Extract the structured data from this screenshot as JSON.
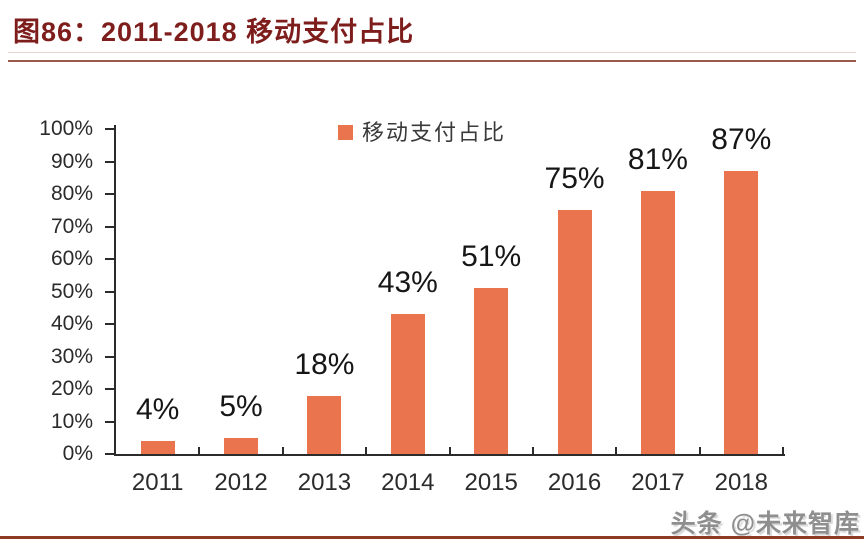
{
  "figure": {
    "title": "图86：2011-2018 移动支付占比",
    "watermark": "头条 @未来智库"
  },
  "colors": {
    "title": "#7E1E1C",
    "bar": "#EA744E",
    "axis": "#2B2B2B",
    "title_rule": "#9A5B4B",
    "bottom_bar": "#8E3B26",
    "watermark": "#8F8F8F"
  },
  "chart_data": {
    "type": "bar",
    "title": "图86：2011-2018 移动支付占比",
    "legend": [
      {
        "label": "移动支付占比",
        "color": "#EA744E"
      }
    ],
    "legend_position": "top-center",
    "categories": [
      "2011",
      "2012",
      "2013",
      "2014",
      "2015",
      "2016",
      "2017",
      "2018"
    ],
    "series": [
      {
        "name": "移动支付占比",
        "values": [
          4,
          5,
          18,
          43,
          51,
          75,
          81,
          87
        ]
      }
    ],
    "data_labels": [
      "4%",
      "5%",
      "18%",
      "43%",
      "51%",
      "75%",
      "81%",
      "87%"
    ],
    "xlabel": "",
    "ylabel": "",
    "ylim": [
      0,
      100
    ],
    "ytick_step": 10,
    "ytick_suffix": "%",
    "grid": false,
    "bar_color": "#EA744E"
  }
}
